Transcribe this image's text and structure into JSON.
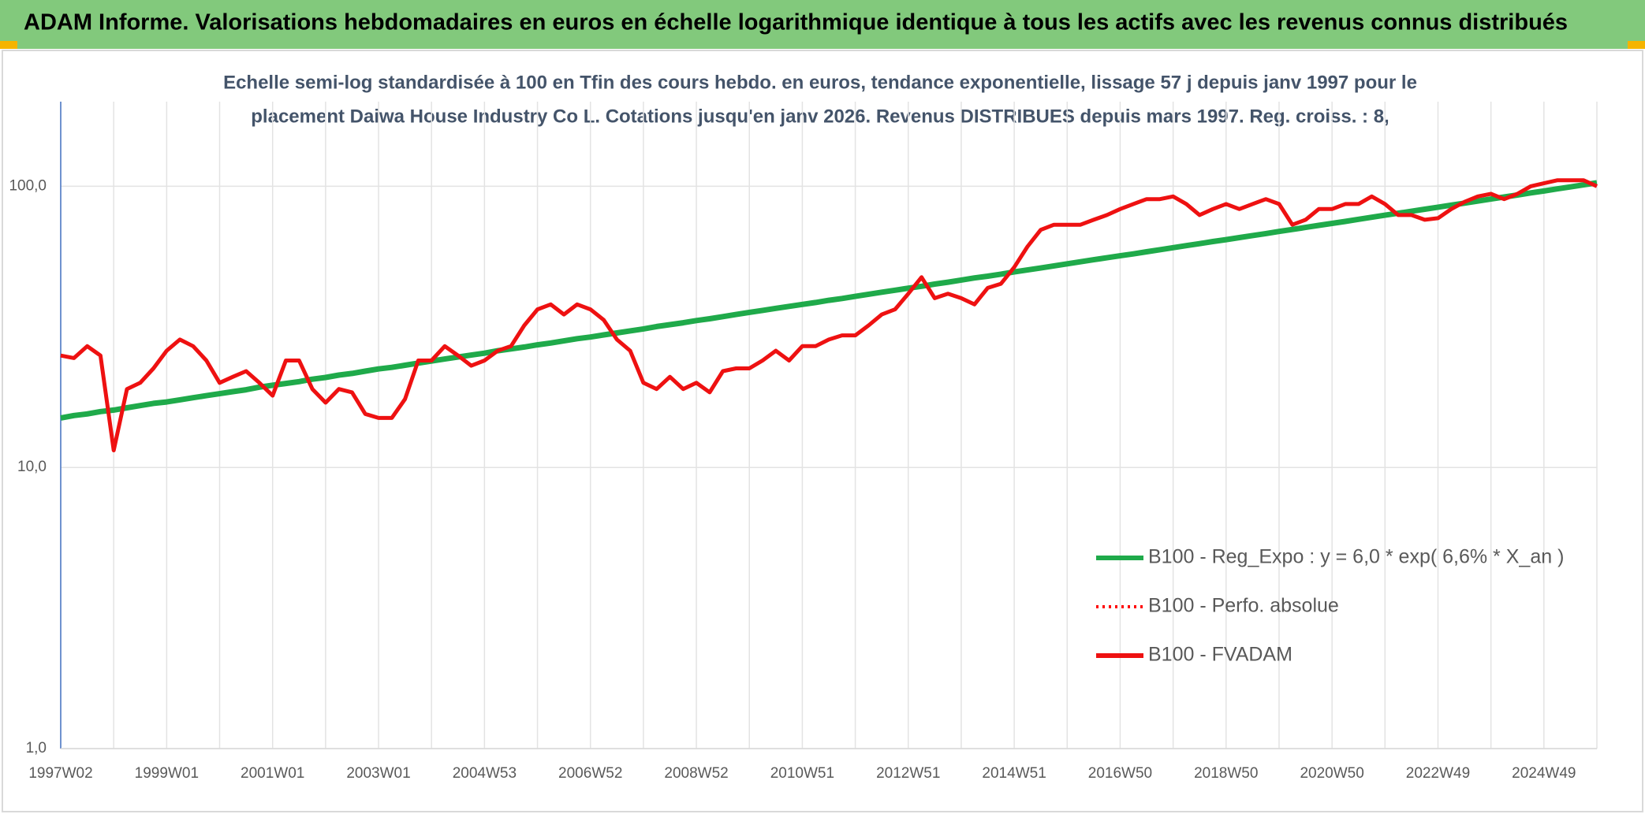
{
  "chart_data": {
    "type": "line",
    "title": "ADAM Informe. Valorisations hebdomadaires en euros en échelle logarithmique identique à tous les actifs avec les revenus connus distribués",
    "subtitle": [
      "Echelle semi-log standardisée à 100 en Tfin des cours hebdo. en euros, tendance exponentielle, lissage 57 j depuis janv 1997 pour le",
      "placement Daiwa House Industry Co L. Cotations jusqu'en janv 2026. Revenus DISTRIBUES depuis mars 1997. Reg. croiss. : 8,"
    ],
    "categories": [
      "1997W02",
      null,
      null,
      null,
      null,
      null,
      null,
      null,
      "1999W01",
      null,
      null,
      null,
      null,
      null,
      null,
      null,
      "2001W01",
      null,
      null,
      null,
      null,
      null,
      null,
      null,
      "2003W01",
      null,
      null,
      null,
      null,
      null,
      null,
      null,
      "2004W53",
      null,
      null,
      null,
      null,
      null,
      null,
      null,
      "2006W52",
      null,
      null,
      null,
      null,
      null,
      null,
      null,
      "2008W52",
      null,
      null,
      null,
      null,
      null,
      null,
      null,
      "2010W51",
      null,
      null,
      null,
      null,
      null,
      null,
      null,
      "2012W51",
      null,
      null,
      null,
      null,
      null,
      null,
      null,
      "2014W51",
      null,
      null,
      null,
      null,
      null,
      null,
      null,
      "2016W50",
      null,
      null,
      null,
      null,
      null,
      null,
      null,
      "2018W50",
      null,
      null,
      null,
      null,
      null,
      null,
      null,
      "2020W50",
      null,
      null,
      null,
      null,
      null,
      null,
      null,
      "2022W49",
      null,
      null,
      null,
      null,
      null,
      null,
      null,
      "2024W49",
      null,
      null,
      null,
      null
    ],
    "series": [
      {
        "name": "B100 - Reg_Expo : y = 6,0 * exp( 6,6% *  X_an )",
        "color": "#1faa4a",
        "style": "solid",
        "values": [
          15,
          15.3,
          15.5,
          15.8,
          16,
          16.3,
          16.6,
          16.9,
          17.1,
          17.4,
          17.7,
          18,
          18.3,
          18.6,
          18.9,
          19.3,
          19.6,
          19.9,
          20.2,
          20.6,
          20.9,
          21.3,
          21.6,
          22,
          22.4,
          22.7,
          23.1,
          23.5,
          23.9,
          24.3,
          24.7,
          25.1,
          25.5,
          26,
          26.4,
          26.8,
          27.3,
          27.7,
          28.2,
          28.7,
          29.1,
          29.6,
          30.1,
          30.6,
          31.1,
          31.7,
          32.2,
          32.7,
          33.3,
          33.8,
          34.4,
          35,
          35.6,
          36.2,
          36.8,
          37.4,
          38,
          38.6,
          39.3,
          39.9,
          40.6,
          41.3,
          42,
          42.7,
          43.4,
          44.1,
          44.9,
          45.6,
          46.4,
          47.2,
          47.9,
          48.7,
          49.6,
          50.4,
          51.2,
          52.1,
          53,
          53.9,
          54.8,
          55.7,
          56.6,
          57.5,
          58.5,
          59.5,
          60.5,
          61.5,
          62.5,
          63.6,
          64.6,
          65.7,
          66.8,
          67.9,
          69.1,
          70.2,
          71.4,
          72.6,
          73.8,
          75,
          76.3,
          77.6,
          78.9,
          80.2,
          81.5,
          82.9,
          84.3,
          85.7,
          87.1,
          88.6,
          90.1,
          91.6,
          93.1,
          94.7,
          96.2,
          97.9,
          99.5,
          101.2,
          102.9
        ]
      },
      {
        "name": "B100 - Perfo. absolue",
        "color": "#ff0000",
        "style": "dotted",
        "values": [
          25,
          24.5,
          27,
          25,
          11.5,
          19,
          20,
          22.5,
          26,
          28.5,
          27,
          24,
          20,
          21,
          22,
          20,
          18,
          24,
          24,
          19,
          17,
          19,
          18.5,
          15.5,
          15,
          15,
          17.5,
          24,
          24,
          27,
          25,
          23,
          24,
          26,
          27,
          32,
          36.5,
          38,
          35,
          38,
          36.5,
          33.5,
          28.5,
          26,
          20,
          19,
          21,
          19,
          20,
          18.5,
          22,
          22.5,
          22.5,
          24,
          26,
          24,
          27,
          27,
          28.5,
          29.5,
          29.5,
          32,
          35,
          36.5,
          41.5,
          47.5,
          40,
          41.5,
          40,
          38,
          43.5,
          45,
          51.5,
          61,
          70,
          73,
          73,
          73,
          76,
          79,
          83,
          86.5,
          90,
          90,
          92,
          86.5,
          79,
          83,
          86.5,
          83,
          86.5,
          90,
          86.5,
          73,
          76,
          83,
          83,
          86.5,
          86.5,
          92,
          86.5,
          79,
          79,
          76,
          77,
          83,
          88,
          92,
          94,
          90,
          94,
          100,
          102.5,
          105,
          105,
          105,
          100
        ]
      },
      {
        "name": "B100 - FVADAM",
        "color": "#ee1111",
        "style": "solid",
        "values": [
          25,
          24.5,
          27,
          25,
          11.5,
          19,
          20,
          22.5,
          26,
          28.5,
          27,
          24,
          20,
          21,
          22,
          20,
          18,
          24,
          24,
          19,
          17,
          19,
          18.5,
          15.5,
          15,
          15,
          17.5,
          24,
          24,
          27,
          25,
          23,
          24,
          26,
          27,
          32,
          36.5,
          38,
          35,
          38,
          36.5,
          33.5,
          28.5,
          26,
          20,
          19,
          21,
          19,
          20,
          18.5,
          22,
          22.5,
          22.5,
          24,
          26,
          24,
          27,
          27,
          28.5,
          29.5,
          29.5,
          32,
          35,
          36.5,
          41.5,
          47.5,
          40,
          41.5,
          40,
          38,
          43.5,
          45,
          51.5,
          61,
          70,
          73,
          73,
          73,
          76,
          79,
          83,
          86.5,
          90,
          90,
          92,
          86.5,
          79,
          83,
          86.5,
          83,
          86.5,
          90,
          86.5,
          73,
          76,
          83,
          83,
          86.5,
          86.5,
          92,
          86.5,
          79,
          79,
          76,
          77,
          83,
          88,
          92,
          94,
          90,
          94,
          100,
          102.5,
          105,
          105,
          105,
          100
        ]
      }
    ],
    "ylim": [
      1,
      200
    ],
    "yticks": [
      {
        "value": 1,
        "label": "1,0"
      },
      {
        "value": 10,
        "label": "10,0"
      },
      {
        "value": 100,
        "label": "100,0"
      }
    ],
    "log_y": true,
    "grid": true,
    "legend": "lower right"
  }
}
